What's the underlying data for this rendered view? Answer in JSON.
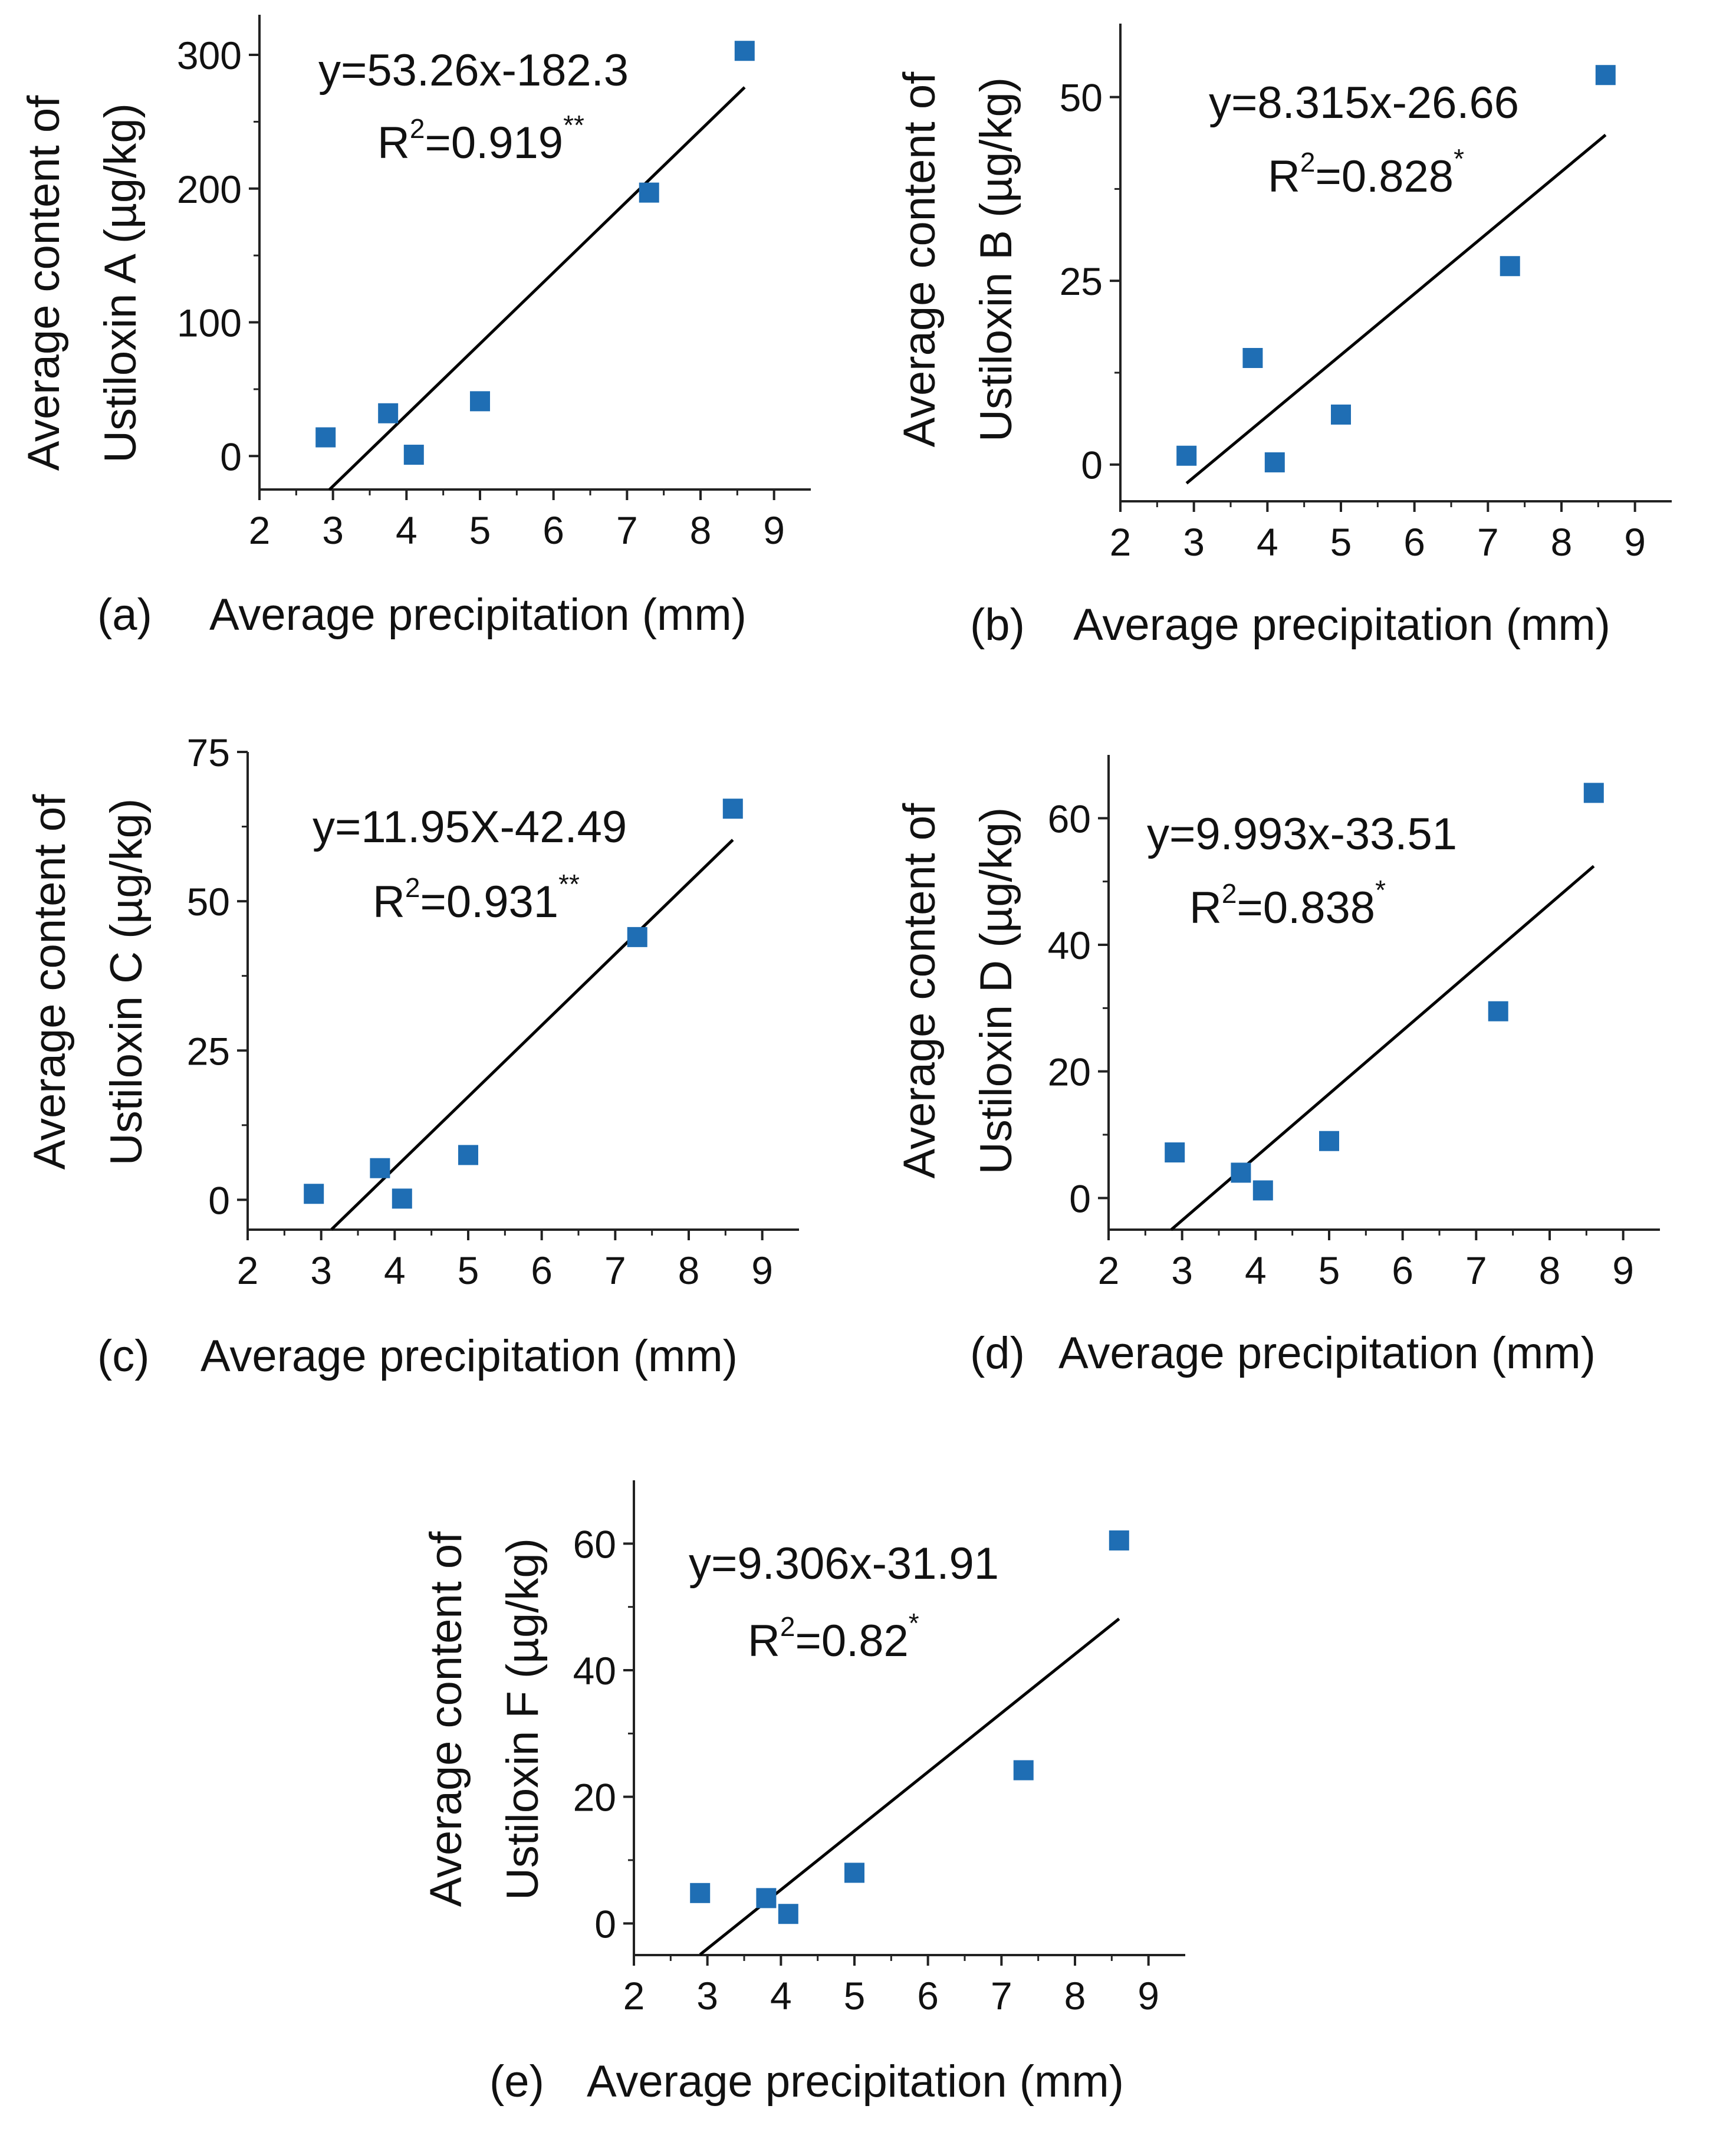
{
  "colors": {
    "marker": "#1f6eb4",
    "line": "#000000",
    "axis": "#222222"
  },
  "chart_data": [
    {
      "type": "scatter",
      "panel_label": "(a)",
      "xlabel": "Average precipitation (mm)",
      "ylabel_line1": "Average content of",
      "ylabel_line2": "Ustiloxin A (µg/kg)",
      "equation": "y=53.26x-182.3",
      "r2_prefix": "R",
      "r2_exp": "2",
      "r2_value": "=0.919",
      "significance": "**",
      "xlim": [
        2,
        9.5
      ],
      "ylim": [
        -25,
        330
      ],
      "xticks": [
        2,
        3,
        4,
        5,
        6,
        7,
        8,
        9
      ],
      "yticks": [
        0,
        100,
        200,
        300
      ],
      "x": [
        2.9,
        3.75,
        4.1,
        5.0,
        7.3,
        8.6
      ],
      "y": [
        14,
        32,
        1,
        41,
        197,
        303
      ],
      "fit": {
        "slope": 53.26,
        "intercept": -182.3,
        "x_range": [
          2.95,
          8.6
        ]
      }
    },
    {
      "type": "scatter",
      "panel_label": "(b)",
      "xlabel": "Average precipitation (mm)",
      "ylabel_line1": "Average content of",
      "ylabel_line2": "Ustiloxin B (µg/kg)",
      "equation": "y=8.315x-26.66",
      "r2_prefix": "R",
      "r2_exp": "2",
      "r2_value": "=0.828",
      "significance": "*",
      "xlim": [
        2,
        9.5
      ],
      "ylim": [
        -5,
        60
      ],
      "xticks": [
        2,
        3,
        4,
        5,
        6,
        7,
        8,
        9
      ],
      "yticks": [
        0,
        25,
        50
      ],
      "x": [
        2.9,
        3.8,
        4.1,
        5.0,
        7.3,
        8.6
      ],
      "y": [
        1.2,
        14.5,
        0.3,
        6.8,
        27,
        53
      ],
      "fit": {
        "slope": 8.315,
        "intercept": -26.66,
        "x_range": [
          2.9,
          8.6
        ]
      }
    },
    {
      "type": "scatter",
      "panel_label": "(c)",
      "xlabel": "Average precipitation (mm)",
      "ylabel_line1": "Average content of",
      "ylabel_line2": "Ustiloxin C (µg/kg)",
      "equation": "y=11.95X-42.49",
      "r2_prefix": "R",
      "r2_exp": "2",
      "r2_value": "=0.931",
      "significance": "**",
      "xlim": [
        2,
        9.5
      ],
      "ylim": [
        -5,
        75
      ],
      "xticks": [
        2,
        3,
        4,
        5,
        6,
        7,
        8,
        9
      ],
      "yticks": [
        0,
        25,
        50,
        75
      ],
      "x": [
        2.9,
        3.8,
        4.1,
        5.0,
        7.3,
        8.6
      ],
      "y": [
        1,
        5.3,
        0.2,
        7.5,
        44,
        65.5
      ],
      "fit": {
        "slope": 11.95,
        "intercept": -42.49,
        "x_range": [
          3.14,
          8.6
        ]
      }
    },
    {
      "type": "scatter",
      "panel_label": "(d)",
      "xlabel": "Average precipitation (mm)",
      "ylabel_line1": "Average content of",
      "ylabel_line2": "Ustiloxin D (µg/kg)",
      "equation": "y=9.993x-33.51",
      "r2_prefix": "R",
      "r2_exp": "2",
      "r2_value": "=0.838",
      "significance": "*",
      "xlim": [
        2,
        9.5
      ],
      "ylim": [
        -5,
        70
      ],
      "xticks": [
        2,
        3,
        4,
        5,
        6,
        7,
        8,
        9
      ],
      "yticks": [
        0,
        20,
        40,
        60
      ],
      "x": [
        2.9,
        3.8,
        4.1,
        5.0,
        7.3,
        8.6
      ],
      "y": [
        7.2,
        4.0,
        1.2,
        9.0,
        29.5,
        64
      ],
      "fit": {
        "slope": 9.993,
        "intercept": -33.51,
        "x_range": [
          2.85,
          8.6
        ]
      }
    },
    {
      "type": "scatter",
      "panel_label": "(e)",
      "xlabel": "Average precipitation (mm)",
      "ylabel_line1": "Average content of",
      "ylabel_line2": "Ustiloxin F (µg/kg)",
      "equation": "y=9.306x-31.91",
      "r2_prefix": "R",
      "r2_exp": "2",
      "r2_value": "=0.82",
      "significance": "*",
      "xlim": [
        2,
        9.5
      ],
      "ylim": [
        -5,
        70
      ],
      "xticks": [
        2,
        3,
        4,
        5,
        6,
        7,
        8,
        9
      ],
      "yticks": [
        0,
        20,
        40,
        60
      ],
      "x": [
        2.9,
        3.8,
        4.1,
        5.0,
        7.3,
        8.6
      ],
      "y": [
        4.8,
        4.0,
        1.5,
        8.0,
        24.2,
        60.5
      ],
      "fit": {
        "slope": 9.306,
        "intercept": -31.91,
        "x_range": [
          2.9,
          8.6
        ]
      }
    }
  ]
}
